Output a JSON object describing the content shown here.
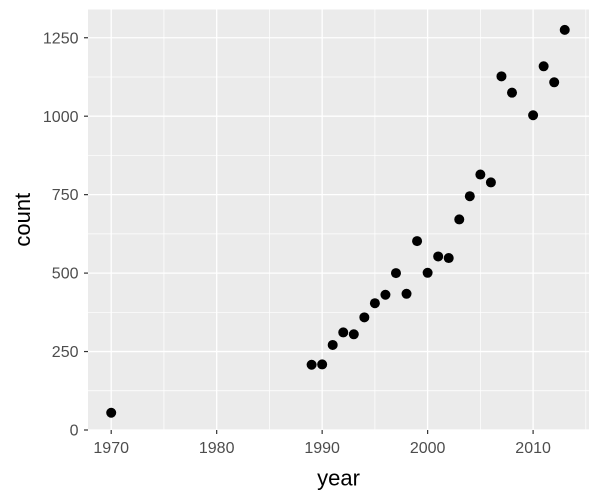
{
  "chart_data": {
    "type": "scatter",
    "title": "",
    "xlabel": "year",
    "ylabel": "count",
    "points": [
      {
        "year": 1970,
        "count": 55
      },
      {
        "year": 1989,
        "count": 208
      },
      {
        "year": 1990,
        "count": 209
      },
      {
        "year": 1991,
        "count": 271
      },
      {
        "year": 1992,
        "count": 311
      },
      {
        "year": 1993,
        "count": 305
      },
      {
        "year": 1994,
        "count": 359
      },
      {
        "year": 1995,
        "count": 404
      },
      {
        "year": 1996,
        "count": 431
      },
      {
        "year": 1997,
        "count": 500
      },
      {
        "year": 1998,
        "count": 434
      },
      {
        "year": 1999,
        "count": 602
      },
      {
        "year": 2000,
        "count": 501
      },
      {
        "year": 2001,
        "count": 553
      },
      {
        "year": 2002,
        "count": 548
      },
      {
        "year": 2003,
        "count": 671
      },
      {
        "year": 2004,
        "count": 745
      },
      {
        "year": 2005,
        "count": 814
      },
      {
        "year": 2006,
        "count": 789
      },
      {
        "year": 2007,
        "count": 1127
      },
      {
        "year": 2008,
        "count": 1075
      },
      {
        "year": 2010,
        "count": 1003
      },
      {
        "year": 2011,
        "count": 1159
      },
      {
        "year": 2012,
        "count": 1108
      },
      {
        "year": 2013,
        "count": 1275
      }
    ],
    "x_ticks": [
      1970,
      1980,
      1990,
      2000,
      2010
    ],
    "y_ticks": [
      0,
      250,
      500,
      750,
      1000,
      1250
    ],
    "x_minor_ticks": [
      1975,
      1985,
      1995,
      2005,
      2015
    ],
    "y_minor_ticks": [
      125,
      375,
      625,
      875,
      1125
    ],
    "xlim": [
      1967.8,
      2015.3
    ],
    "ylim": [
      0,
      1340
    ],
    "grid": true,
    "legend": "none",
    "style": {
      "background": "#FFFFFF",
      "panel_background": "#EBEBEB",
      "grid_color": "#FFFFFF",
      "point_color": "#000000",
      "point_radius": 5,
      "tick_mark_color": "#333333",
      "tick_label_color": "#4D4D4D",
      "axis_title_color": "#000000"
    }
  }
}
